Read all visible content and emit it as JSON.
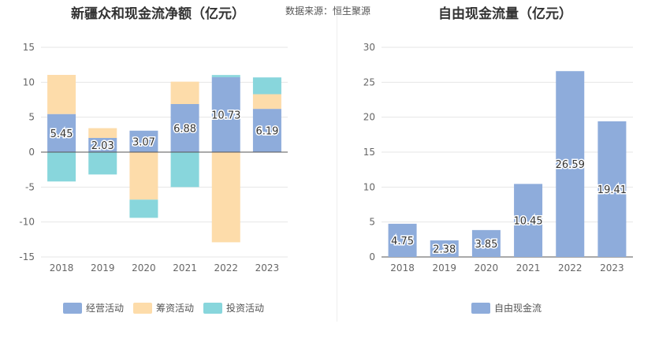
{
  "source": "数据来源：恒生聚源",
  "colors": {
    "operating": "#8eacdb",
    "financing": "#fddcaa",
    "investing": "#88d6dc",
    "fcf": "#8eacdb"
  },
  "chart_data": [
    {
      "type": "bar",
      "stacked": true,
      "title": "新疆众和现金流净额（亿元）",
      "categories": [
        "2018",
        "2019",
        "2020",
        "2021",
        "2022",
        "2023"
      ],
      "ylim": [
        -15,
        15
      ],
      "yticks": [
        15,
        10,
        5,
        0,
        -5,
        -10,
        -15
      ],
      "legend_position": "bottom",
      "series": [
        {
          "name": "经营活动",
          "key": "operating",
          "values": [
            5.45,
            2.03,
            3.07,
            6.88,
            10.73,
            6.19
          ],
          "labels": [
            "5.45",
            "2.03",
            "3.07",
            "6.88",
            "10.73",
            "6.19"
          ]
        },
        {
          "name": "筹资活动",
          "key": "financing",
          "values": [
            5.6,
            1.4,
            -6.8,
            3.2,
            -12.9,
            2.1
          ]
        },
        {
          "name": "投资活动",
          "key": "investing",
          "values": [
            -4.2,
            -3.2,
            -2.6,
            -5.0,
            0.3,
            2.4
          ]
        }
      ]
    },
    {
      "type": "bar",
      "title": "自由现金流量（亿元）",
      "categories": [
        "2018",
        "2019",
        "2020",
        "2021",
        "2022",
        "2023"
      ],
      "ylim": [
        0,
        30
      ],
      "yticks": [
        30,
        25,
        20,
        15,
        10,
        5,
        0
      ],
      "legend_position": "bottom",
      "series": [
        {
          "name": "自由现金流",
          "key": "fcf",
          "values": [
            4.75,
            2.38,
            3.85,
            10.45,
            26.59,
            19.41
          ],
          "labels": [
            "4.75",
            "2.38",
            "3.85",
            "10.45",
            "26.59",
            "19.41"
          ]
        }
      ]
    }
  ]
}
